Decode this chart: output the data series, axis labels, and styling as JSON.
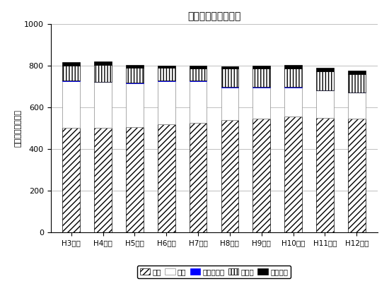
{
  "title": "ごみ処理形態の推移",
  "ylabel": "処理量（ｔ／年）",
  "categories": [
    "H3年度",
    "H4年度",
    "H5年度",
    "H6年度",
    "H7年度",
    "H8年度",
    "H9年度",
    "H10年度",
    "H11年度",
    "H12年度"
  ],
  "series_焼却": [
    500,
    500,
    505,
    520,
    525,
    540,
    545,
    555,
    550,
    545
  ],
  "series_埋立": [
    225,
    220,
    210,
    205,
    200,
    155,
    150,
    140,
    130,
    125
  ],
  "series_高速堆肥化": [
    3,
    3,
    2,
    2,
    2,
    2,
    2,
    2,
    2,
    2
  ],
  "series_その他": [
    70,
    80,
    72,
    62,
    60,
    88,
    88,
    88,
    90,
    88
  ],
  "series_自家処理": [
    17,
    17,
    13,
    11,
    13,
    12,
    13,
    18,
    18,
    17
  ],
  "legend_labels": [
    "焼却",
    "埋立",
    "高速堆肚化",
    "その他",
    "自家処理"
  ],
  "ylim": [
    0,
    1000
  ],
  "yticks": [
    0,
    200,
    400,
    600,
    800,
    1000
  ],
  "background_color": "#ffffff",
  "grid_color": "#c0c0c0"
}
